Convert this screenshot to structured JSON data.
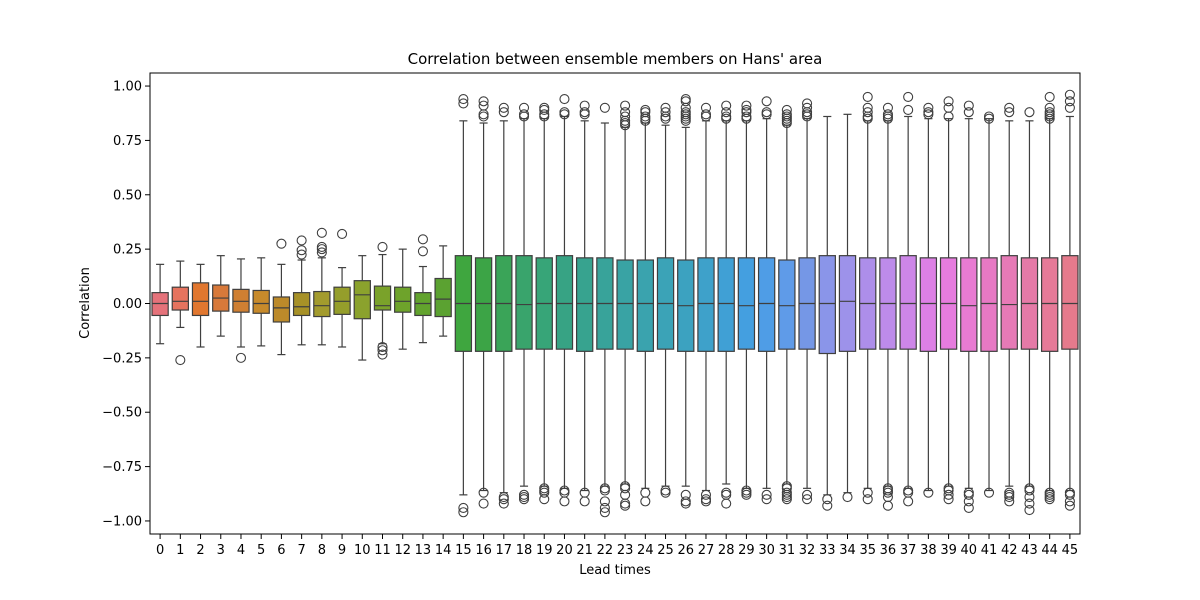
{
  "chart_data": {
    "type": "box",
    "title": "Correlation between ensemble members on Hans' area",
    "xlabel": "Lead times",
    "ylabel": "Correlation",
    "ylim": [
      -1.06,
      1.06
    ],
    "yticks": [
      "1.00",
      "0.75",
      "0.50",
      "0.25",
      "0.00",
      "−0.25",
      "−0.50",
      "−0.75",
      "−1.00"
    ],
    "ytick_values": [
      1.0,
      0.75,
      0.5,
      0.25,
      0.0,
      -0.25,
      -0.5,
      -0.75,
      -1.0
    ],
    "grid": false,
    "categories": [
      "0",
      "1",
      "2",
      "3",
      "4",
      "5",
      "6",
      "7",
      "8",
      "9",
      "10",
      "11",
      "12",
      "13",
      "14",
      "15",
      "16",
      "17",
      "18",
      "19",
      "20",
      "21",
      "22",
      "23",
      "24",
      "25",
      "26",
      "27",
      "28",
      "29",
      "30",
      "31",
      "32",
      "33",
      "34",
      "35",
      "36",
      "37",
      "38",
      "39",
      "40",
      "41",
      "42",
      "43",
      "44",
      "45"
    ],
    "colors": [
      "#e5727a",
      "#e6735e",
      "#e1772f",
      "#d8793a",
      "#cf7f32",
      "#c78a2b",
      "#bc8a2a",
      "#a79127",
      "#a39b2d",
      "#959e2b",
      "#8ba22d",
      "#7aa22a",
      "#6ea32b",
      "#62a32d",
      "#5ba231",
      "#3fa63f",
      "#3ca446",
      "#3aa458",
      "#39a46c",
      "#37a578",
      "#37a384",
      "#37a38f",
      "#38a39a",
      "#39a3a4",
      "#3aa3ae",
      "#3ba3b7",
      "#3ca2c0",
      "#3ea1ca",
      "#40a0d5",
      "#449fe0",
      "#4f9de6",
      "#5f9be8",
      "#7597e6",
      "#8a95e9",
      "#9d92ea",
      "#ad8eea",
      "#bd8bea",
      "#cd86e8",
      "#dd80e5",
      "#e67cde",
      "#e87bd2",
      "#e779c4",
      "#e67ab6",
      "#e57aa7",
      "#e67a98",
      "#e57a8c"
    ],
    "boxes": [
      {
        "q1": -0.055,
        "median": 0.0,
        "q3": 0.05,
        "wlo": -0.185,
        "whi": 0.18,
        "outliers": []
      },
      {
        "q1": -0.03,
        "median": 0.01,
        "q3": 0.075,
        "wlo": -0.11,
        "whi": 0.195,
        "outliers": [
          -0.26
        ]
      },
      {
        "q1": -0.055,
        "median": 0.01,
        "q3": 0.095,
        "wlo": -0.2,
        "whi": 0.18,
        "outliers": []
      },
      {
        "q1": -0.035,
        "median": 0.025,
        "q3": 0.085,
        "wlo": -0.15,
        "whi": 0.22,
        "outliers": []
      },
      {
        "q1": -0.04,
        "median": 0.01,
        "q3": 0.065,
        "wlo": -0.2,
        "whi": 0.205,
        "outliers": [
          -0.25
        ]
      },
      {
        "q1": -0.045,
        "median": 0.0,
        "q3": 0.06,
        "wlo": -0.195,
        "whi": 0.21,
        "outliers": []
      },
      {
        "q1": -0.085,
        "median": -0.02,
        "q3": 0.03,
        "wlo": -0.235,
        "whi": 0.18,
        "outliers": [
          0.275
        ]
      },
      {
        "q1": -0.055,
        "median": -0.015,
        "q3": 0.05,
        "wlo": -0.19,
        "whi": 0.2,
        "outliers": [
          0.29,
          0.245,
          0.225
        ]
      },
      {
        "q1": -0.06,
        "median": -0.01,
        "q3": 0.055,
        "wlo": -0.19,
        "whi": 0.21,
        "outliers": [
          0.325,
          0.26,
          0.25,
          0.235
        ]
      },
      {
        "q1": -0.05,
        "median": 0.01,
        "q3": 0.075,
        "wlo": -0.2,
        "whi": 0.165,
        "outliers": [
          0.32
        ]
      },
      {
        "q1": -0.07,
        "median": 0.04,
        "q3": 0.105,
        "wlo": -0.26,
        "whi": 0.22,
        "outliers": []
      },
      {
        "q1": -0.03,
        "median": -0.01,
        "q3": 0.08,
        "wlo": -0.185,
        "whi": 0.225,
        "outliers": [
          0.26,
          -0.2,
          -0.215,
          -0.235
        ]
      },
      {
        "q1": -0.04,
        "median": 0.01,
        "q3": 0.075,
        "wlo": -0.21,
        "whi": 0.25,
        "outliers": []
      },
      {
        "q1": -0.055,
        "median": 0.0,
        "q3": 0.05,
        "wlo": -0.18,
        "whi": 0.17,
        "outliers": [
          0.295,
          0.24
        ]
      },
      {
        "q1": -0.06,
        "median": 0.02,
        "q3": 0.115,
        "wlo": -0.15,
        "whi": 0.265,
        "outliers": []
      },
      {
        "q1": -0.22,
        "median": 0.0,
        "q3": 0.22,
        "wlo": -0.88,
        "whi": 0.84,
        "outliers": [
          0.94,
          0.92,
          -0.94,
          -0.96
        ]
      },
      {
        "q1": -0.22,
        "median": 0.0,
        "q3": 0.21,
        "wlo": -0.86,
        "whi": 0.83,
        "outliers": [
          0.93,
          0.91,
          0.87,
          0.86,
          -0.87,
          -0.92
        ]
      },
      {
        "q1": -0.22,
        "median": 0.0,
        "q3": 0.22,
        "wlo": -0.87,
        "whi": 0.84,
        "outliers": [
          0.9,
          0.88,
          -0.89,
          -0.9,
          -0.92
        ]
      },
      {
        "q1": -0.21,
        "median": -0.005,
        "q3": 0.22,
        "wlo": -0.84,
        "whi": 0.85,
        "outliers": [
          0.9,
          0.87,
          0.86,
          -0.88,
          -0.9,
          -0.89
        ]
      },
      {
        "q1": -0.21,
        "median": 0.0,
        "q3": 0.21,
        "wlo": -0.84,
        "whi": 0.85,
        "outliers": [
          0.9,
          0.89,
          0.87,
          0.86,
          -0.85,
          -0.86,
          -0.87,
          -0.9
        ]
      },
      {
        "q1": -0.21,
        "median": 0.0,
        "q3": 0.22,
        "wlo": -0.85,
        "whi": 0.86,
        "outliers": [
          0.94,
          0.88,
          0.87,
          -0.86,
          -0.87,
          -0.91
        ]
      },
      {
        "q1": -0.22,
        "median": 0.0,
        "q3": 0.21,
        "wlo": -0.86,
        "whi": 0.84,
        "outliers": [
          0.91,
          0.88,
          0.87,
          -0.87,
          -0.91
        ]
      },
      {
        "q1": -0.21,
        "median": 0.0,
        "q3": 0.21,
        "wlo": -0.84,
        "whi": 0.83,
        "outliers": [
          0.9,
          -0.85,
          -0.86,
          -0.91,
          -0.94,
          -0.96
        ]
      },
      {
        "q1": -0.21,
        "median": 0.0,
        "q3": 0.2,
        "wlo": -0.83,
        "whi": 0.81,
        "outliers": [
          0.91,
          0.88,
          0.86,
          0.84,
          0.83,
          0.82,
          -0.84,
          -0.85,
          -0.88,
          -0.92,
          -0.93
        ]
      },
      {
        "q1": -0.22,
        "median": 0.0,
        "q3": 0.2,
        "wlo": -0.85,
        "whi": 0.83,
        "outliers": [
          0.89,
          0.88,
          0.86,
          0.85,
          0.84,
          -0.87,
          -0.91
        ]
      },
      {
        "q1": -0.21,
        "median": 0.0,
        "q3": 0.21,
        "wlo": -0.84,
        "whi": 0.82,
        "outliers": [
          0.9,
          0.88,
          0.86,
          0.85,
          -0.86,
          -0.87
        ]
      },
      {
        "q1": -0.22,
        "median": -0.01,
        "q3": 0.2,
        "wlo": -0.84,
        "whi": 0.81,
        "outliers": [
          0.94,
          0.93,
          0.9,
          0.88,
          0.87,
          0.86,
          0.85,
          0.84,
          -0.88,
          -0.91,
          -0.92
        ]
      },
      {
        "q1": -0.22,
        "median": 0.0,
        "q3": 0.21,
        "wlo": -0.86,
        "whi": 0.84,
        "outliers": [
          0.9,
          0.87,
          0.86,
          -0.88,
          -0.9,
          -0.91
        ]
      },
      {
        "q1": -0.22,
        "median": 0.0,
        "q3": 0.21,
        "wlo": -0.83,
        "whi": 0.84,
        "outliers": [
          0.91,
          0.88,
          0.86,
          0.85,
          -0.87,
          -0.88,
          -0.92
        ]
      },
      {
        "q1": -0.21,
        "median": -0.01,
        "q3": 0.21,
        "wlo": -0.85,
        "whi": 0.84,
        "outliers": [
          0.91,
          0.89,
          0.88,
          0.86,
          0.85,
          -0.86,
          -0.87,
          -0.88
        ]
      },
      {
        "q1": -0.22,
        "median": 0.0,
        "q3": 0.21,
        "wlo": -0.85,
        "whi": 0.85,
        "outliers": [
          0.93,
          0.88,
          0.87,
          -0.88,
          -0.9
        ]
      },
      {
        "q1": -0.21,
        "median": -0.01,
        "q3": 0.2,
        "wlo": -0.83,
        "whi": 0.82,
        "outliers": [
          0.89,
          0.87,
          0.86,
          0.85,
          0.84,
          0.83,
          -0.84,
          -0.85,
          -0.87,
          -0.88,
          -0.89,
          -0.9
        ]
      },
      {
        "q1": -0.21,
        "median": 0.0,
        "q3": 0.21,
        "wlo": -0.85,
        "whi": 0.85,
        "outliers": [
          0.92,
          0.9,
          0.88,
          0.87,
          0.86,
          -0.88,
          -0.9
        ]
      },
      {
        "q1": -0.23,
        "median": 0.0,
        "q3": 0.22,
        "wlo": -0.88,
        "whi": 0.86,
        "outliers": [
          -0.9,
          -0.93
        ]
      },
      {
        "q1": -0.22,
        "median": 0.01,
        "q3": 0.22,
        "wlo": -0.87,
        "whi": 0.87,
        "outliers": [
          -0.89
        ]
      },
      {
        "q1": -0.21,
        "median": 0.0,
        "q3": 0.21,
        "wlo": -0.85,
        "whi": 0.84,
        "outliers": [
          0.95,
          0.9,
          0.88,
          0.86,
          0.85,
          -0.87,
          -0.9
        ]
      },
      {
        "q1": -0.21,
        "median": 0.0,
        "q3": 0.21,
        "wlo": -0.84,
        "whi": 0.84,
        "outliers": [
          0.9,
          0.87,
          0.86,
          0.85,
          -0.85,
          -0.86,
          -0.87,
          -0.89,
          -0.93
        ]
      },
      {
        "q1": -0.21,
        "median": 0.0,
        "q3": 0.22,
        "wlo": -0.85,
        "whi": 0.86,
        "outliers": [
          0.95,
          0.89,
          -0.86,
          -0.87,
          -0.91
        ]
      },
      {
        "q1": -0.22,
        "median": 0.0,
        "q3": 0.21,
        "wlo": -0.86,
        "whi": 0.85,
        "outliers": [
          0.9,
          0.88,
          0.87,
          -0.87
        ]
      },
      {
        "q1": -0.21,
        "median": 0.0,
        "q3": 0.21,
        "wlo": -0.84,
        "whi": 0.85,
        "outliers": [
          0.93,
          0.9,
          0.86,
          -0.85,
          -0.86,
          -0.88,
          -0.9
        ]
      },
      {
        "q1": -0.22,
        "median": -0.01,
        "q3": 0.21,
        "wlo": -0.85,
        "whi": 0.85,
        "outliers": [
          0.91,
          0.88,
          -0.87,
          -0.88,
          -0.91,
          -0.94
        ]
      },
      {
        "q1": -0.22,
        "median": 0.0,
        "q3": 0.21,
        "wlo": -0.86,
        "whi": 0.85,
        "outliers": [
          0.86,
          0.85,
          -0.87
        ]
      },
      {
        "q1": -0.21,
        "median": -0.005,
        "q3": 0.22,
        "wlo": -0.84,
        "whi": 0.84,
        "outliers": [
          0.9,
          0.88,
          -0.87,
          -0.88,
          -0.89,
          -0.91
        ]
      },
      {
        "q1": -0.21,
        "median": 0.0,
        "q3": 0.21,
        "wlo": -0.84,
        "whi": 0.84,
        "outliers": [
          0.88,
          -0.85,
          -0.86,
          -0.89,
          -0.92,
          -0.95
        ]
      },
      {
        "q1": -0.22,
        "median": 0.0,
        "q3": 0.21,
        "wlo": -0.86,
        "whi": 0.85,
        "outliers": [
          0.95,
          0.9,
          0.88,
          0.87,
          0.86,
          0.85,
          -0.87,
          -0.88,
          -0.89,
          -0.9
        ]
      },
      {
        "q1": -0.21,
        "median": 0.0,
        "q3": 0.22,
        "wlo": -0.86,
        "whi": 0.86,
        "outliers": [
          0.96,
          0.93,
          0.9,
          -0.87,
          -0.88,
          -0.91,
          -0.93
        ]
      }
    ]
  }
}
